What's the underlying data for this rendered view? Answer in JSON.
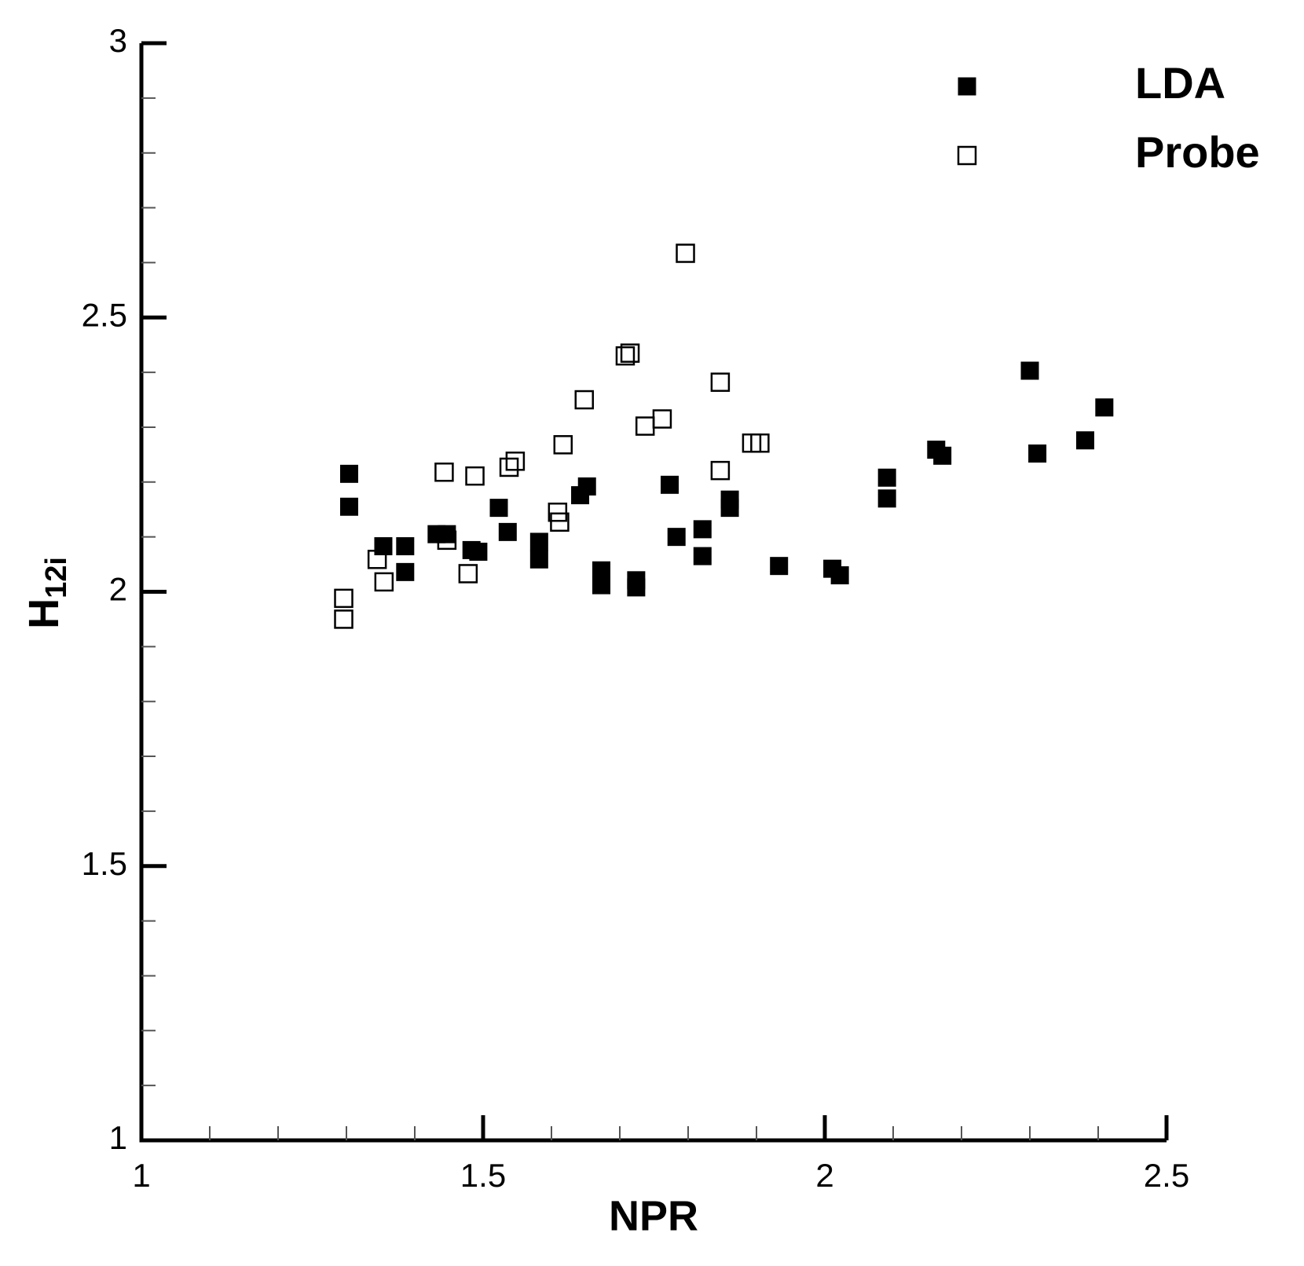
{
  "chart_data": {
    "type": "scatter",
    "x_label": "NPR",
    "y_label": "H",
    "y_label_sub": "12i",
    "xlim": [
      1,
      2.5
    ],
    "ylim": [
      1,
      3
    ],
    "xticks": [
      1,
      1.5,
      2,
      2.5
    ],
    "yticks": [
      1,
      1.5,
      2,
      2.5,
      3
    ],
    "xminor_ticks": [
      1.1,
      1.2,
      1.3,
      1.4,
      1.6,
      1.7,
      1.8,
      1.9,
      2.1,
      2.2,
      2.3,
      2.4
    ],
    "yminor_ticks": [
      1.1,
      1.2,
      1.3,
      1.4,
      1.6,
      1.7,
      1.8,
      1.9,
      2.1,
      2.2,
      2.3,
      2.4,
      2.6,
      2.7,
      2.8,
      2.9
    ],
    "grid": false,
    "legend": "top-right",
    "series": [
      {
        "name": "LDA",
        "color": "#000000",
        "marker": "filled-square",
        "x": [
          1.304,
          1.304,
          1.354,
          1.386,
          1.386,
          1.432,
          1.447,
          1.483,
          1.493,
          1.523,
          1.536,
          1.582,
          1.582,
          1.642,
          1.652,
          1.673,
          1.673,
          1.724,
          1.724,
          1.773,
          1.783,
          1.821,
          1.821,
          1.861,
          1.861,
          1.933,
          2.011,
          2.022,
          2.091,
          2.091,
          2.163,
          2.172,
          2.3,
          2.311,
          2.381,
          2.409
        ],
        "values": [
          2.215,
          2.155,
          2.083,
          2.083,
          2.036,
          2.105,
          2.105,
          2.076,
          2.073,
          2.153,
          2.109,
          2.091,
          2.059,
          2.176,
          2.192,
          2.039,
          2.012,
          2.021,
          2.008,
          2.195,
          2.1,
          2.114,
          2.065,
          2.168,
          2.153,
          2.047,
          2.042,
          2.03,
          2.208,
          2.17,
          2.259,
          2.248,
          2.403,
          2.252,
          2.276,
          2.336
        ]
      },
      {
        "name": "Probe",
        "color": "#000000",
        "marker": "open-square",
        "x": [
          1.296,
          1.296,
          1.345,
          1.355,
          1.443,
          1.447,
          1.478,
          1.488,
          1.538,
          1.547,
          1.609,
          1.612,
          1.617,
          1.648,
          1.708,
          1.715,
          1.737,
          1.762,
          1.796,
          1.847,
          1.847,
          1.893,
          1.905
        ],
        "values": [
          1.988,
          1.95,
          2.059,
          2.018,
          2.218,
          2.094,
          2.033,
          2.211,
          2.227,
          2.238,
          2.145,
          2.127,
          2.268,
          2.35,
          2.43,
          2.435,
          2.302,
          2.315,
          2.617,
          2.382,
          2.221,
          2.271,
          2.271
        ]
      }
    ]
  }
}
